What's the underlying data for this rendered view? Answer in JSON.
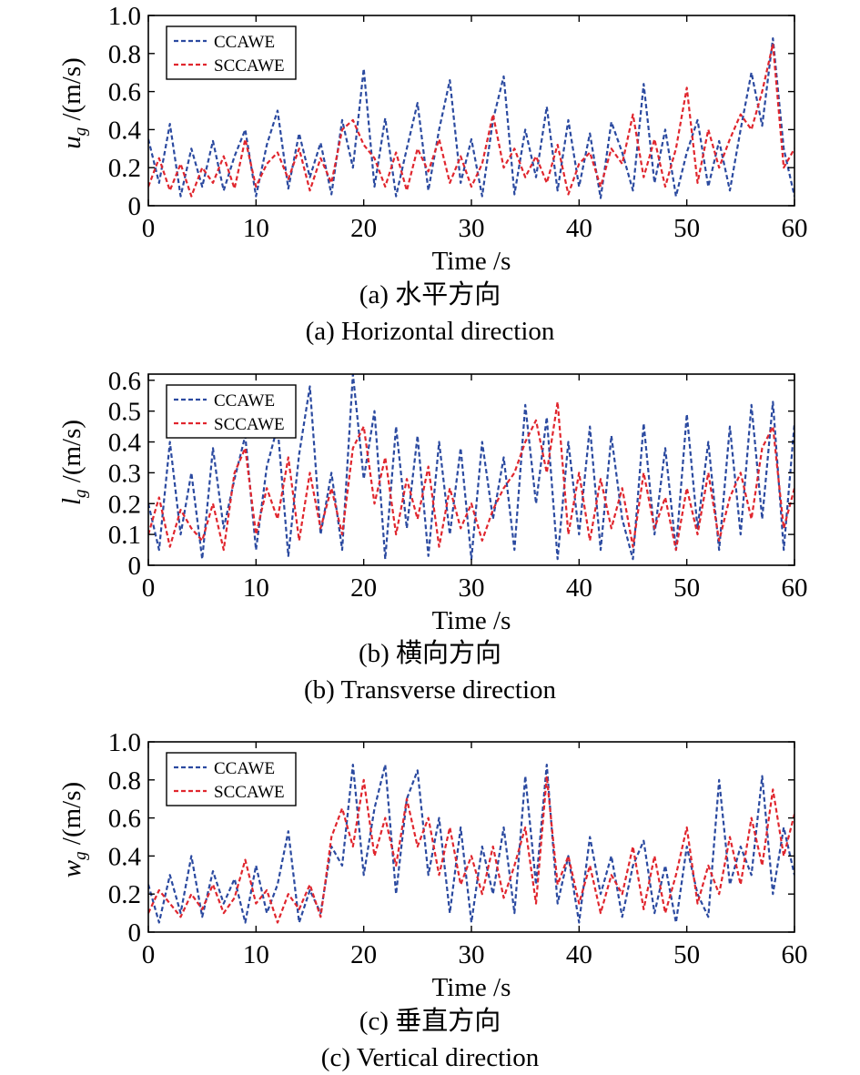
{
  "figure": {
    "panels": [
      {
        "caption_zh": "(a) 水平方向",
        "caption_en": "(a) Horizontal direction"
      },
      {
        "caption_zh": "(b) 横向方向",
        "caption_en": "(b) Transverse direction"
      },
      {
        "caption_zh": "(c) 垂直方向",
        "caption_en": "(c) Vertical direction"
      }
    ]
  },
  "colors": {
    "CCAWE": "#2b4aa0",
    "SCCAWE": "#e0262e",
    "axis": "#000000"
  },
  "chart_data": [
    {
      "type": "line",
      "xlabel": "Time /s",
      "ylabel_var": "u",
      "ylabel_sub": "g",
      "ylabel_unit": " /(m/s)",
      "xlim": [
        0,
        60
      ],
      "ylim": [
        0,
        1.0
      ],
      "xticks": [
        0,
        10,
        20,
        30,
        40,
        50,
        60
      ],
      "yticks": [
        0,
        0.2,
        0.4,
        0.6,
        0.8,
        1.0
      ],
      "yticklabels": [
        "0",
        "0.2",
        "0.4",
        "0.6",
        "0.8",
        "1.0"
      ],
      "grid": false,
      "legend": "top-left",
      "series": [
        {
          "name": "CCAWE",
          "style": "dashed",
          "x": [
            0,
            1,
            2,
            3,
            4,
            5,
            6,
            7,
            8,
            9,
            10,
            11,
            12,
            13,
            14,
            15,
            16,
            17,
            18,
            19,
            20,
            21,
            22,
            23,
            24,
            25,
            26,
            27,
            28,
            29,
            30,
            31,
            32,
            33,
            34,
            35,
            36,
            37,
            38,
            39,
            40,
            41,
            42,
            43,
            44,
            45,
            46,
            47,
            48,
            49,
            50,
            51,
            52,
            53,
            54,
            55,
            56,
            57,
            58,
            59,
            60
          ],
          "values": [
            0.35,
            0.12,
            0.43,
            0.05,
            0.3,
            0.1,
            0.34,
            0.08,
            0.26,
            0.4,
            0.05,
            0.32,
            0.5,
            0.09,
            0.38,
            0.15,
            0.33,
            0.06,
            0.45,
            0.2,
            0.72,
            0.1,
            0.46,
            0.05,
            0.3,
            0.54,
            0.08,
            0.4,
            0.66,
            0.12,
            0.35,
            0.05,
            0.45,
            0.68,
            0.06,
            0.4,
            0.15,
            0.52,
            0.08,
            0.45,
            0.1,
            0.38,
            0.04,
            0.44,
            0.28,
            0.08,
            0.64,
            0.12,
            0.4,
            0.05,
            0.28,
            0.45,
            0.1,
            0.34,
            0.08,
            0.4,
            0.7,
            0.42,
            0.88,
            0.3,
            0.05
          ]
        },
        {
          "name": "SCCAWE",
          "style": "dashed",
          "x": [
            0,
            1,
            2,
            3,
            4,
            5,
            6,
            7,
            8,
            9,
            10,
            11,
            12,
            13,
            14,
            15,
            16,
            17,
            18,
            19,
            20,
            21,
            22,
            23,
            24,
            25,
            26,
            27,
            28,
            29,
            30,
            31,
            32,
            33,
            34,
            35,
            36,
            37,
            38,
            39,
            40,
            41,
            42,
            43,
            44,
            45,
            46,
            47,
            48,
            49,
            50,
            51,
            52,
            53,
            54,
            55,
            56,
            57,
            58,
            59,
            60
          ],
          "values": [
            0.1,
            0.25,
            0.08,
            0.22,
            0.05,
            0.2,
            0.12,
            0.26,
            0.09,
            0.35,
            0.1,
            0.22,
            0.28,
            0.14,
            0.3,
            0.08,
            0.25,
            0.12,
            0.4,
            0.45,
            0.32,
            0.25,
            0.1,
            0.28,
            0.08,
            0.3,
            0.18,
            0.35,
            0.12,
            0.26,
            0.1,
            0.22,
            0.48,
            0.2,
            0.3,
            0.15,
            0.26,
            0.12,
            0.32,
            0.06,
            0.22,
            0.28,
            0.1,
            0.3,
            0.22,
            0.48,
            0.15,
            0.35,
            0.1,
            0.3,
            0.62,
            0.12,
            0.4,
            0.2,
            0.35,
            0.48,
            0.4,
            0.6,
            0.85,
            0.2,
            0.3
          ]
        }
      ]
    },
    {
      "type": "line",
      "xlabel": "Time /s",
      "ylabel_var": "l",
      "ylabel_sub": "g",
      "ylabel_unit": " /(m/s)",
      "xlim": [
        0,
        60
      ],
      "ylim": [
        0,
        0.62
      ],
      "xticks": [
        0,
        10,
        20,
        30,
        40,
        50,
        60
      ],
      "yticks": [
        0,
        0.1,
        0.2,
        0.3,
        0.4,
        0.5,
        0.6
      ],
      "yticklabels": [
        "0",
        "0.1",
        "0.2",
        "0.3",
        "0.4",
        "0.5",
        "0.6"
      ],
      "grid": false,
      "legend": "top-left",
      "series": [
        {
          "name": "CCAWE",
          "style": "dashed",
          "x": [
            0,
            1,
            2,
            3,
            4,
            5,
            6,
            7,
            8,
            9,
            10,
            11,
            12,
            13,
            14,
            15,
            16,
            17,
            18,
            19,
            20,
            21,
            22,
            23,
            24,
            25,
            26,
            27,
            28,
            29,
            30,
            31,
            32,
            33,
            34,
            35,
            36,
            37,
            38,
            39,
            40,
            41,
            42,
            43,
            44,
            45,
            46,
            47,
            48,
            49,
            50,
            51,
            52,
            53,
            54,
            55,
            56,
            57,
            58,
            59,
            60
          ],
          "values": [
            0.2,
            0.05,
            0.4,
            0.1,
            0.3,
            0.02,
            0.38,
            0.12,
            0.28,
            0.42,
            0.05,
            0.32,
            0.45,
            0.03,
            0.36,
            0.58,
            0.1,
            0.3,
            0.05,
            0.62,
            0.28,
            0.5,
            0.02,
            0.45,
            0.12,
            0.42,
            0.03,
            0.4,
            0.1,
            0.38,
            0.02,
            0.4,
            0.15,
            0.35,
            0.05,
            0.52,
            0.2,
            0.48,
            0.02,
            0.4,
            0.1,
            0.45,
            0.05,
            0.42,
            0.15,
            0.02,
            0.46,
            0.1,
            0.38,
            0.05,
            0.49,
            0.12,
            0.4,
            0.05,
            0.45,
            0.1,
            0.52,
            0.15,
            0.53,
            0.05,
            0.46
          ]
        },
        {
          "name": "SCCAWE",
          "style": "dashed",
          "x": [
            0,
            1,
            2,
            3,
            4,
            5,
            6,
            7,
            8,
            9,
            10,
            11,
            12,
            13,
            14,
            15,
            16,
            17,
            18,
            19,
            20,
            21,
            22,
            23,
            24,
            25,
            26,
            27,
            28,
            29,
            30,
            31,
            32,
            33,
            34,
            35,
            36,
            37,
            38,
            39,
            40,
            41,
            42,
            43,
            44,
            45,
            46,
            47,
            48,
            49,
            50,
            51,
            52,
            53,
            54,
            55,
            56,
            57,
            58,
            59,
            60
          ],
          "values": [
            0.1,
            0.22,
            0.06,
            0.18,
            0.12,
            0.08,
            0.2,
            0.05,
            0.3,
            0.38,
            0.1,
            0.25,
            0.15,
            0.35,
            0.08,
            0.3,
            0.12,
            0.25,
            0.1,
            0.38,
            0.45,
            0.2,
            0.35,
            0.1,
            0.28,
            0.15,
            0.32,
            0.06,
            0.25,
            0.12,
            0.2,
            0.08,
            0.18,
            0.25,
            0.3,
            0.4,
            0.47,
            0.3,
            0.53,
            0.1,
            0.3,
            0.08,
            0.28,
            0.12,
            0.25,
            0.06,
            0.3,
            0.12,
            0.22,
            0.05,
            0.25,
            0.1,
            0.3,
            0.08,
            0.22,
            0.3,
            0.15,
            0.38,
            0.45,
            0.12,
            0.25
          ]
        }
      ]
    },
    {
      "type": "line",
      "xlabel": "Time /s",
      "ylabel_var": "w",
      "ylabel_sub": "g",
      "ylabel_unit": " /(m/s)",
      "xlim": [
        0,
        60
      ],
      "ylim": [
        0,
        1.0
      ],
      "xticks": [
        0,
        10,
        20,
        30,
        40,
        50,
        60
      ],
      "yticks": [
        0,
        0.2,
        0.4,
        0.6,
        0.8,
        1.0
      ],
      "yticklabels": [
        "0",
        "0.2",
        "0.4",
        "0.6",
        "0.8",
        "1.0"
      ],
      "grid": false,
      "legend": "top-left",
      "series": [
        {
          "name": "CCAWE",
          "style": "dashed",
          "x": [
            0,
            1,
            2,
            3,
            4,
            5,
            6,
            7,
            8,
            9,
            10,
            11,
            12,
            13,
            14,
            15,
            16,
            17,
            18,
            19,
            20,
            21,
            22,
            23,
            24,
            25,
            26,
            27,
            28,
            29,
            30,
            31,
            32,
            33,
            34,
            35,
            36,
            37,
            38,
            39,
            40,
            41,
            42,
            43,
            44,
            45,
            46,
            47,
            48,
            49,
            50,
            51,
            52,
            53,
            54,
            55,
            56,
            57,
            58,
            59,
            60
          ],
          "values": [
            0.25,
            0.05,
            0.3,
            0.1,
            0.4,
            0.08,
            0.32,
            0.15,
            0.28,
            0.05,
            0.35,
            0.1,
            0.25,
            0.53,
            0.05,
            0.22,
            0.1,
            0.45,
            0.35,
            0.88,
            0.3,
            0.65,
            0.88,
            0.2,
            0.7,
            0.85,
            0.3,
            0.6,
            0.1,
            0.55,
            0.05,
            0.45,
            0.2,
            0.55,
            0.1,
            0.82,
            0.25,
            0.88,
            0.15,
            0.4,
            0.05,
            0.5,
            0.2,
            0.4,
            0.08,
            0.35,
            0.48,
            0.1,
            0.35,
            0.05,
            0.45,
            0.2,
            0.08,
            0.8,
            0.25,
            0.45,
            0.3,
            0.82,
            0.2,
            0.55,
            0.3
          ]
        },
        {
          "name": "SCCAWE",
          "style": "dashed",
          "x": [
            0,
            1,
            2,
            3,
            4,
            5,
            6,
            7,
            8,
            9,
            10,
            11,
            12,
            13,
            14,
            15,
            16,
            17,
            18,
            19,
            20,
            21,
            22,
            23,
            24,
            25,
            26,
            27,
            28,
            29,
            30,
            31,
            32,
            33,
            34,
            35,
            36,
            37,
            38,
            39,
            40,
            41,
            42,
            43,
            44,
            45,
            46,
            47,
            48,
            49,
            50,
            51,
            52,
            53,
            54,
            55,
            56,
            57,
            58,
            59,
            60
          ],
          "values": [
            0.1,
            0.22,
            0.15,
            0.08,
            0.2,
            0.12,
            0.25,
            0.1,
            0.18,
            0.38,
            0.15,
            0.22,
            0.05,
            0.2,
            0.12,
            0.25,
            0.08,
            0.5,
            0.65,
            0.45,
            0.8,
            0.4,
            0.6,
            0.35,
            0.7,
            0.45,
            0.6,
            0.3,
            0.55,
            0.25,
            0.4,
            0.2,
            0.45,
            0.18,
            0.35,
            0.55,
            0.15,
            0.82,
            0.25,
            0.4,
            0.15,
            0.35,
            0.1,
            0.3,
            0.2,
            0.45,
            0.12,
            0.4,
            0.1,
            0.3,
            0.55,
            0.15,
            0.35,
            0.2,
            0.5,
            0.25,
            0.6,
            0.35,
            0.75,
            0.4,
            0.62
          ]
        }
      ]
    }
  ]
}
